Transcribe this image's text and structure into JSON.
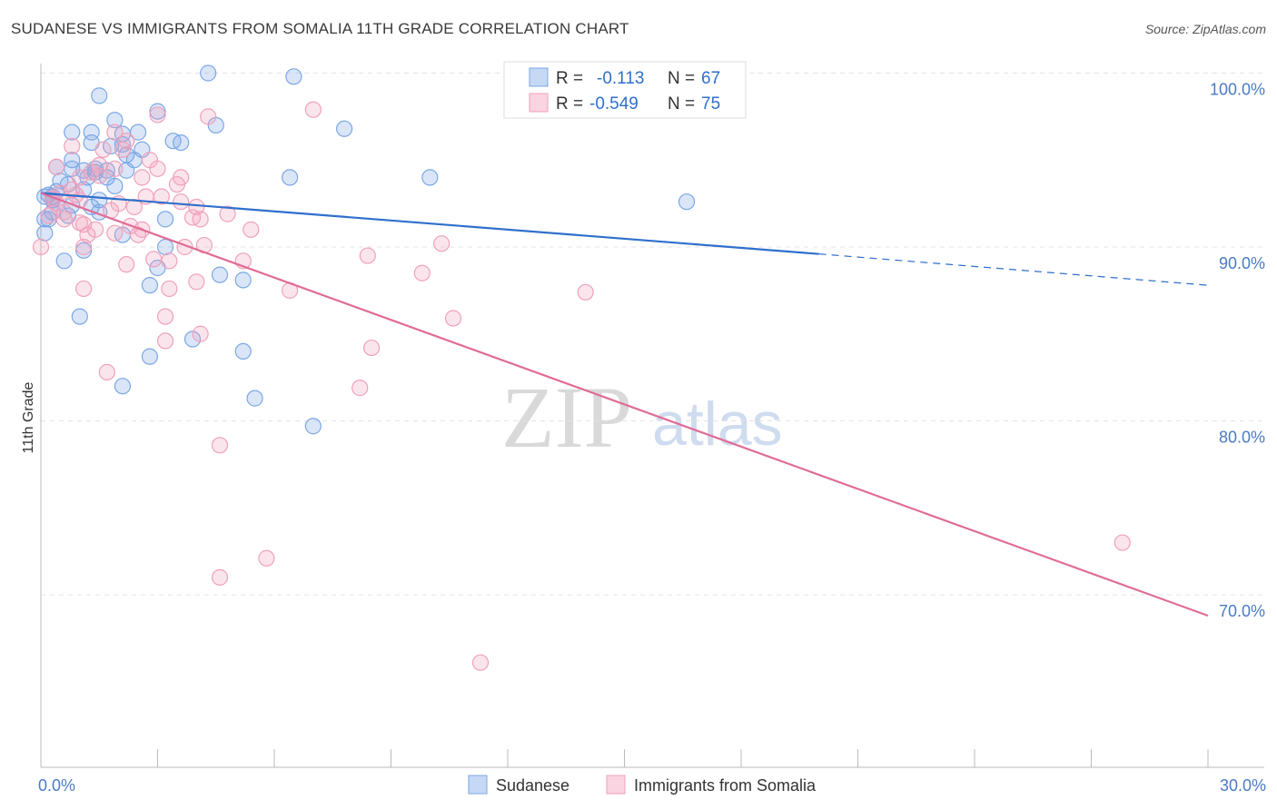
{
  "header": {
    "title": "SUDANESE VS IMMIGRANTS FROM SOMALIA 11TH GRADE CORRELATION CHART",
    "source": "Source: ZipAtlas.com"
  },
  "watermark": {
    "zip": "ZIP",
    "atlas": "atlas"
  },
  "legend": {
    "rows": [
      {
        "r_label": "R =",
        "r_value": "-0.113",
        "n_label": "N =",
        "n_value": "67",
        "color": "#7ba7e6"
      },
      {
        "r_label": "R =",
        "r_value": "-0.549",
        "n_label": "N =",
        "n_value": "75",
        "color": "#f0a1bb"
      }
    ]
  },
  "chart_data": {
    "type": "scatter",
    "title": "SUDANESE VS IMMIGRANTS FROM SOMALIA 11TH GRADE CORRELATION CHART",
    "xlabel": "",
    "ylabel": "11th Grade",
    "xlim": [
      0,
      30
    ],
    "ylim": [
      60.5,
      101
    ],
    "x_ticks": [
      {
        "value": 0,
        "label": "0.0%"
      },
      {
        "value": 30,
        "label": "30.0%"
      }
    ],
    "y_ticks": [
      {
        "value": 100,
        "label": "100.0%"
      },
      {
        "value": 90,
        "label": "90.0%"
      },
      {
        "value": 80,
        "label": "80.0%"
      },
      {
        "value": 70,
        "label": "70.0%"
      }
    ],
    "grid": true,
    "legend_position": "top-center",
    "series": [
      {
        "name": "Sudanese",
        "color": "#7ba7e6",
        "line_color": "#2f6fcc",
        "trend": {
          "x": [
            0,
            20
          ],
          "y": [
            93.1,
            89.6
          ],
          "dashed_to": [
            30,
            87.8
          ]
        },
        "points": [
          [
            4.3,
            100.0
          ],
          [
            6.5,
            99.8
          ],
          [
            1.5,
            98.7
          ],
          [
            3.0,
            97.8
          ],
          [
            1.9,
            97.3
          ],
          [
            4.5,
            97.0
          ],
          [
            7.8,
            96.8
          ],
          [
            0.8,
            96.6
          ],
          [
            1.3,
            96.6
          ],
          [
            2.5,
            96.6
          ],
          [
            2.1,
            96.5
          ],
          [
            3.4,
            96.1
          ],
          [
            3.6,
            96.0
          ],
          [
            1.3,
            96.0
          ],
          [
            2.1,
            95.9
          ],
          [
            1.8,
            95.8
          ],
          [
            2.6,
            95.6
          ],
          [
            2.2,
            95.3
          ],
          [
            2.4,
            95.0
          ],
          [
            0.8,
            95.0
          ],
          [
            0.4,
            94.6
          ],
          [
            1.4,
            94.5
          ],
          [
            0.8,
            94.5
          ],
          [
            1.1,
            94.4
          ],
          [
            1.7,
            94.4
          ],
          [
            2.2,
            94.4
          ],
          [
            1.4,
            94.3
          ],
          [
            6.4,
            94.0
          ],
          [
            10.0,
            94.0
          ],
          [
            1.2,
            94.0
          ],
          [
            1.7,
            94.0
          ],
          [
            0.5,
            93.8
          ],
          [
            0.7,
            93.6
          ],
          [
            1.9,
            93.5
          ],
          [
            1.1,
            93.3
          ],
          [
            0.1,
            92.9
          ],
          [
            0.3,
            92.9
          ],
          [
            0.3,
            92.7
          ],
          [
            1.5,
            92.7
          ],
          [
            0.4,
            92.5
          ],
          [
            16.6,
            92.6
          ],
          [
            0.8,
            92.4
          ],
          [
            1.3,
            92.3
          ],
          [
            1.5,
            92.0
          ],
          [
            0.7,
            91.8
          ],
          [
            0.2,
            91.6
          ],
          [
            0.1,
            91.6
          ],
          [
            3.2,
            91.6
          ],
          [
            0.1,
            90.8
          ],
          [
            2.1,
            90.7
          ],
          [
            3.2,
            90.0
          ],
          [
            1.1,
            89.8
          ],
          [
            0.6,
            89.2
          ],
          [
            3.0,
            88.8
          ],
          [
            4.6,
            88.4
          ],
          [
            5.2,
            88.1
          ],
          [
            2.8,
            87.8
          ],
          [
            1.0,
            86.0
          ],
          [
            3.9,
            84.7
          ],
          [
            5.2,
            84.0
          ],
          [
            2.8,
            83.7
          ],
          [
            2.1,
            82.0
          ],
          [
            5.5,
            81.3
          ],
          [
            7.0,
            79.7
          ],
          [
            0.3,
            92.0
          ],
          [
            0.2,
            93.0
          ],
          [
            0.4,
            93.2
          ]
        ]
      },
      {
        "name": "Immigrants from Somalia",
        "color": "#f0a1bb",
        "line_color": "#e06c97",
        "trend": {
          "x": [
            0,
            30
          ],
          "y": [
            93.1,
            68.8
          ]
        },
        "points": [
          [
            7.0,
            97.9
          ],
          [
            3.0,
            97.6
          ],
          [
            4.3,
            97.5
          ],
          [
            1.9,
            96.6
          ],
          [
            2.2,
            96.1
          ],
          [
            0.8,
            95.8
          ],
          [
            1.6,
            95.6
          ],
          [
            2.1,
            95.6
          ],
          [
            1.5,
            94.7
          ],
          [
            0.4,
            94.6
          ],
          [
            3.0,
            94.5
          ],
          [
            1.9,
            94.5
          ],
          [
            1.3,
            94.3
          ],
          [
            2.6,
            94.0
          ],
          [
            3.6,
            94.0
          ],
          [
            1.5,
            94.1
          ],
          [
            0.8,
            93.3
          ],
          [
            0.5,
            93.1
          ],
          [
            2.7,
            92.9
          ],
          [
            3.1,
            92.9
          ],
          [
            0.3,
            92.8
          ],
          [
            1.0,
            92.7
          ],
          [
            3.6,
            92.6
          ],
          [
            2.4,
            92.3
          ],
          [
            4.0,
            92.3
          ],
          [
            0.6,
            92.0
          ],
          [
            1.8,
            92.1
          ],
          [
            4.8,
            91.9
          ],
          [
            3.9,
            91.7
          ],
          [
            0.6,
            91.6
          ],
          [
            4.1,
            91.6
          ],
          [
            1.0,
            91.4
          ],
          [
            1.1,
            91.3
          ],
          [
            2.3,
            91.2
          ],
          [
            5.4,
            91.0
          ],
          [
            2.6,
            91.0
          ],
          [
            1.9,
            90.8
          ],
          [
            2.5,
            90.7
          ],
          [
            1.2,
            90.7
          ],
          [
            0.0,
            90.0
          ],
          [
            4.2,
            90.1
          ],
          [
            3.7,
            90.0
          ],
          [
            10.3,
            90.2
          ],
          [
            1.1,
            90.0
          ],
          [
            8.4,
            89.5
          ],
          [
            2.9,
            89.3
          ],
          [
            3.3,
            89.2
          ],
          [
            5.2,
            89.2
          ],
          [
            2.2,
            89.0
          ],
          [
            9.8,
            88.5
          ],
          [
            4.0,
            88.0
          ],
          [
            1.1,
            87.6
          ],
          [
            3.3,
            87.6
          ],
          [
            6.4,
            87.5
          ],
          [
            14.0,
            87.4
          ],
          [
            3.2,
            86.0
          ],
          [
            10.6,
            85.9
          ],
          [
            4.1,
            85.0
          ],
          [
            3.2,
            84.6
          ],
          [
            8.5,
            84.2
          ],
          [
            1.7,
            82.8
          ],
          [
            8.2,
            81.9
          ],
          [
            4.6,
            78.6
          ],
          [
            5.8,
            72.1
          ],
          [
            4.6,
            71.0
          ],
          [
            27.8,
            73.0
          ],
          [
            11.3,
            66.1
          ],
          [
            0.4,
            92.5
          ],
          [
            0.9,
            93.0
          ],
          [
            2.0,
            92.5
          ],
          [
            1.4,
            91.0
          ],
          [
            0.2,
            91.8
          ],
          [
            3.5,
            93.6
          ],
          [
            2.8,
            95.0
          ],
          [
            1.0,
            94.0
          ]
        ]
      }
    ]
  },
  "bottom_legend": [
    {
      "label": "Sudanese",
      "color": "#7ba7e6"
    },
    {
      "label": "Immigrants from Somalia",
      "color": "#f0a1bb"
    }
  ]
}
